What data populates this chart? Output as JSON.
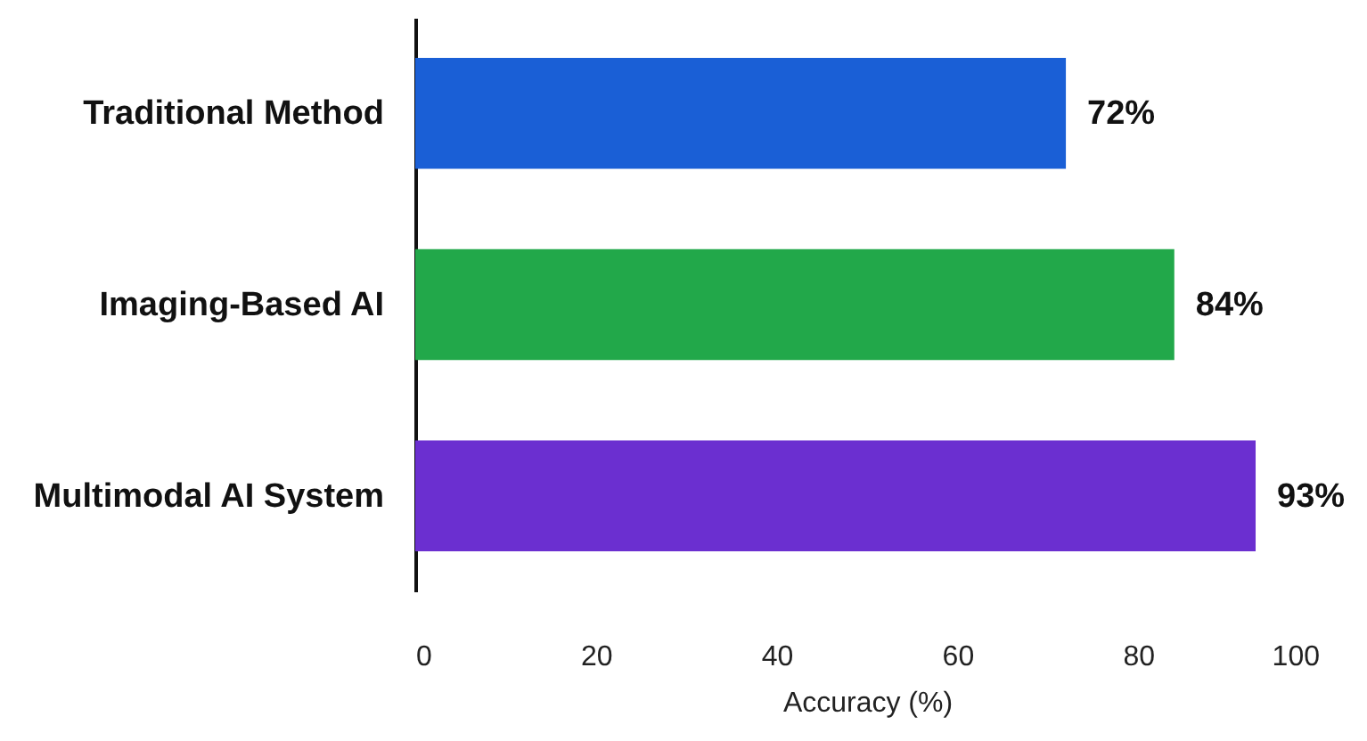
{
  "chart_data": {
    "type": "bar",
    "orientation": "horizontal",
    "xlabel": "Accuracy (%)",
    "categories": [
      "Traditional Method",
      "Imaging-Based AI",
      "Multimodal AI System"
    ],
    "values": [
      72,
      84,
      93
    ],
    "colors": [
      "#1a5fd6",
      "#22a84a",
      "#6b2fd0"
    ],
    "value_labels": [
      "72%",
      "84%",
      "93%"
    ],
    "xlim": [
      0,
      100
    ],
    "xticks": [
      0,
      20,
      40,
      60,
      80,
      100
    ],
    "grid": false
  }
}
